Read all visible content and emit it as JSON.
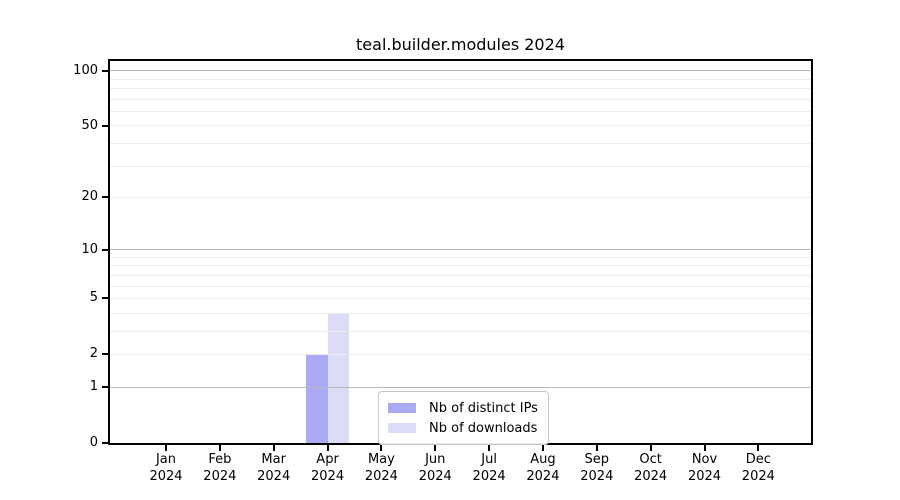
{
  "title": "teal.builder.modules 2024",
  "chart_data": {
    "type": "bar",
    "title": "teal.builder.modules 2024",
    "categories": [
      "Jan 2024",
      "Feb 2024",
      "Mar 2024",
      "Apr 2024",
      "May 2024",
      "Jun 2024",
      "Jul 2024",
      "Aug 2024",
      "Sep 2024",
      "Oct 2024",
      "Nov 2024",
      "Dec 2024"
    ],
    "x_months": [
      "Jan",
      "Feb",
      "Mar",
      "Apr",
      "May",
      "Jun",
      "Jul",
      "Aug",
      "Sep",
      "Oct",
      "Nov",
      "Dec"
    ],
    "x_year": "2024",
    "series": [
      {
        "name": "Nb of distinct IPs",
        "color": "#a9a9f4",
        "values": [
          0,
          0,
          0,
          2,
          0,
          0,
          0,
          0,
          0,
          0,
          0,
          0
        ]
      },
      {
        "name": "Nb of downloads",
        "color": "#dcdcf8",
        "values": [
          0,
          0,
          0,
          4,
          0,
          0,
          0,
          0,
          0,
          0,
          0,
          0
        ]
      }
    ],
    "xlabel": "",
    "ylabel": "",
    "yscale": "log1p",
    "ylim": [
      0,
      113
    ],
    "yticks": [
      0,
      1,
      2,
      5,
      10,
      20,
      50,
      100
    ],
    "major_gridlines": [
      1,
      10,
      100
    ],
    "minor_gridlines": [
      2,
      3,
      4,
      5,
      6,
      7,
      8,
      9,
      20,
      30,
      40,
      50,
      60,
      70,
      80,
      90
    ],
    "grid": true,
    "legend_position": "lower center"
  },
  "legend": {
    "items": [
      {
        "label": "Nb of distinct IPs",
        "color": "#a9a9f4"
      },
      {
        "label": "Nb of downloads",
        "color": "#dcdcf8"
      }
    ]
  },
  "colors": {
    "background": "#ffffff",
    "axis": "#000000",
    "major_grid": "#b9b9b9",
    "minor_grid": "#ededed",
    "legend_border": "#c9c9c9",
    "bar_distinct_ips": "#a9a9f4",
    "bar_downloads": "#dcdcf8"
  }
}
